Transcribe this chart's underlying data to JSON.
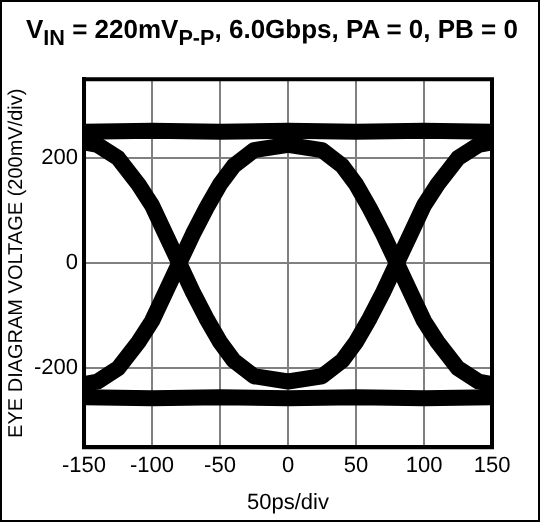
{
  "chart_data": {
    "type": "line",
    "title": "V$_{IN}$ = 220mV$_{P-P}$, 6.0Gbps, PA = 0, PB = 0",
    "xlabel": "50ps/div",
    "ylabel": "EYE DIAGRAM VOLTAGE (200mV/div)",
    "xlim": [
      -150,
      150
    ],
    "xticks": [
      -150,
      -100,
      -50,
      0,
      50,
      100,
      150
    ],
    "ylim": [
      -350,
      350
    ],
    "yticks": [
      -200,
      0,
      200
    ],
    "grid": true,
    "legend": false,
    "marker": "none",
    "line_style": "solid",
    "series": [
      {
        "color": "#000000",
        "x": [
          -150,
          -100,
          -50,
          0,
          50,
          100,
          150
        ],
        "values": [
          250,
          252,
          250,
          252,
          250,
          252,
          250
        ]
      },
      {
        "color": "#000000",
        "x": [
          -150,
          -100,
          -50,
          0,
          50,
          100,
          150
        ],
        "values": [
          -255,
          -257,
          -255,
          -257,
          -255,
          -257,
          -255
        ]
      },
      {
        "color": "#000000",
        "x": [
          -150,
          -140,
          -125,
          -110,
          -100,
          -90,
          -80,
          -70,
          -60,
          -50,
          -40,
          -25,
          0,
          25,
          40,
          50,
          60,
          70,
          80,
          90,
          100,
          110,
          125,
          140,
          150
        ],
        "values": [
          230,
          225,
          200,
          150,
          110,
          55,
          0,
          -55,
          -105,
          -150,
          -185,
          -215,
          -225,
          -215,
          -185,
          -150,
          -105,
          -55,
          0,
          55,
          110,
          150,
          200,
          225,
          230
        ]
      },
      {
        "color": "#000000",
        "x": [
          -150,
          -140,
          -125,
          -110,
          -100,
          -90,
          -80,
          -70,
          -60,
          -50,
          -40,
          -25,
          0,
          25,
          40,
          50,
          60,
          70,
          80,
          90,
          100,
          110,
          125,
          140,
          150
        ],
        "values": [
          -230,
          -225,
          -200,
          -150,
          -110,
          -55,
          0,
          55,
          105,
          150,
          185,
          215,
          225,
          215,
          185,
          150,
          105,
          55,
          0,
          -55,
          -110,
          -150,
          -200,
          -225,
          -230
        ]
      }
    ]
  }
}
